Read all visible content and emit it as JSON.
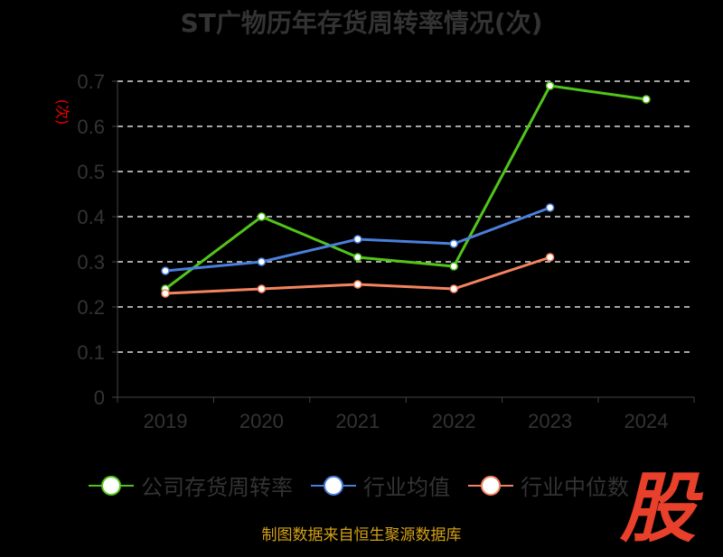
{
  "chart_data": {
    "type": "line",
    "title": "ST广物历年存货周转率情况(次)",
    "ylabel": "(次)",
    "xlabel": "",
    "categories": [
      "2019",
      "2020",
      "2021",
      "2022",
      "2023",
      "2024"
    ],
    "ylim": [
      0,
      0.7
    ],
    "yticks": [
      "0",
      "0.1",
      "0.2",
      "0.3",
      "0.4",
      "0.5",
      "0.6",
      "0.7"
    ],
    "grid": true,
    "legend_position": "bottom",
    "series": [
      {
        "name": "公司存货周转率",
        "color": "#52c41a",
        "values": [
          0.24,
          0.4,
          0.31,
          0.29,
          0.69,
          0.66
        ]
      },
      {
        "name": "行业均值",
        "color": "#4a7fdc",
        "values": [
          0.28,
          0.3,
          0.35,
          0.34,
          0.42,
          null
        ]
      },
      {
        "name": "行业中位数",
        "color": "#f4845f",
        "values": [
          0.23,
          0.24,
          0.25,
          0.24,
          0.31,
          null
        ]
      }
    ]
  },
  "source": "制图数据来自恒生聚源数据库",
  "logo_text": "股"
}
